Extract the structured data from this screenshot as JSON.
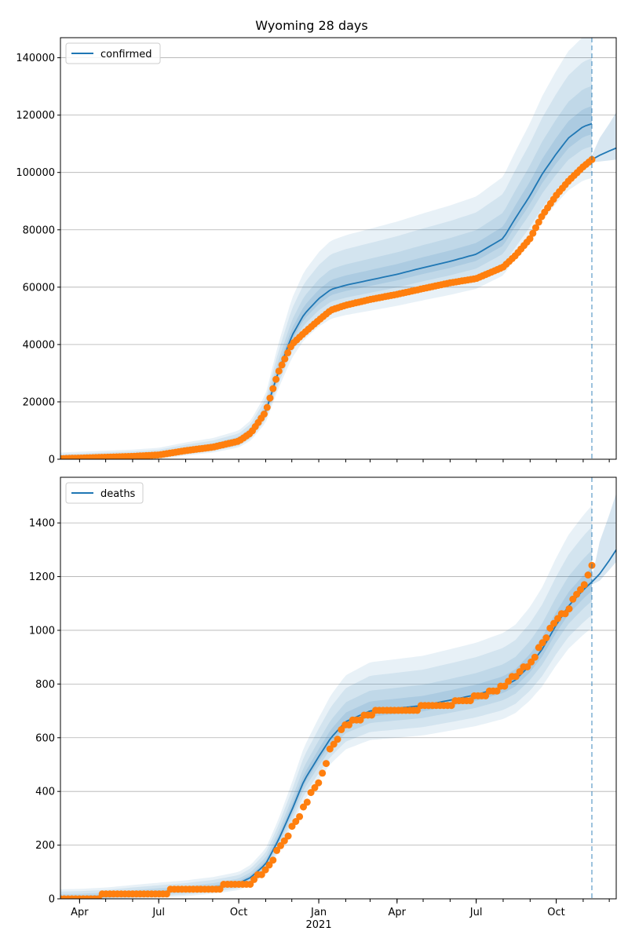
{
  "chart_data": [
    {
      "type": "line",
      "title": "Wyoming 28 days",
      "legend": "confirmed",
      "legend_position": "top-left",
      "grid": "y",
      "xlim": [
        "2020-03-10",
        "2021-12-09"
      ],
      "ylim": [
        0,
        147000
      ],
      "yticks": [
        0,
        20000,
        40000,
        60000,
        80000,
        100000,
        120000,
        140000
      ],
      "forecast_start": "2021-11-11",
      "series": [
        {
          "name": "confirmed",
          "role": "model",
          "color": "#1f77b4",
          "x": [
            "2020-03-10",
            "2020-04-01",
            "2020-05-01",
            "2020-06-01",
            "2020-07-01",
            "2020-08-01",
            "2020-09-01",
            "2020-10-01",
            "2020-10-15",
            "2020-11-01",
            "2020-11-15",
            "2020-12-01",
            "2020-12-15",
            "2021-01-01",
            "2021-01-15",
            "2021-02-01",
            "2021-03-01",
            "2021-04-01",
            "2021-05-01",
            "2021-06-01",
            "2021-07-01",
            "2021-08-01",
            "2021-08-15",
            "2021-09-01",
            "2021-09-15",
            "2021-10-01",
            "2021-10-15",
            "2021-11-01",
            "2021-11-11"
          ],
          "y": [
            200,
            400,
            700,
            1000,
            1500,
            3000,
            4200,
            6300,
            9200,
            16500,
            30000,
            43000,
            50500,
            56000,
            59200,
            60700,
            62500,
            64500,
            66800,
            69000,
            71500,
            77000,
            84000,
            92000,
            99500,
            106500,
            112000,
            116000,
            117000
          ]
        },
        {
          "name": "confirmed",
          "role": "observed",
          "color": "#ff7f0e",
          "x": [
            "2020-03-10",
            "2020-04-01",
            "2020-05-01",
            "2020-06-01",
            "2020-07-01",
            "2020-08-01",
            "2020-09-01",
            "2020-10-01",
            "2020-10-15",
            "2020-11-01",
            "2020-11-15",
            "2020-12-01",
            "2020-12-15",
            "2021-01-01",
            "2021-01-15",
            "2021-02-01",
            "2021-03-01",
            "2021-04-01",
            "2021-05-01",
            "2021-06-01",
            "2021-07-01",
            "2021-08-01",
            "2021-08-15",
            "2021-09-01",
            "2021-09-15",
            "2021-10-01",
            "2021-10-15",
            "2021-11-01",
            "2021-11-11"
          ],
          "y": [
            200,
            400,
            700,
            1000,
            1500,
            3000,
            4200,
            6300,
            9200,
            16500,
            30000,
            40000,
            44000,
            48500,
            52000,
            53700,
            55700,
            57500,
            59500,
            61500,
            63000,
            67000,
            71000,
            77000,
            85000,
            92000,
            97000,
            102000,
            104500
          ]
        }
      ],
      "forecast": {
        "x": [
          "2021-11-11",
          "2021-11-20",
          "2021-12-01",
          "2021-12-09"
        ],
        "y": [
          104500,
          106000,
          107500,
          108500
        ],
        "lower": [
          103500,
          103800,
          104200,
          104500
        ],
        "upper": [
          106000,
          112000,
          117000,
          121000
        ]
      }
    },
    {
      "type": "line",
      "legend": "deaths",
      "legend_position": "top-left",
      "grid": "y",
      "xlim": [
        "2020-03-10",
        "2021-12-09"
      ],
      "ylim": [
        0,
        1570
      ],
      "yticks": [
        0,
        200,
        400,
        600,
        800,
        1000,
        1200,
        1400
      ],
      "xtick_labels": [
        "Apr",
        "Jul",
        "Oct",
        "Jan",
        "Apr",
        "Jul",
        "Oct"
      ],
      "xtick_dates": [
        "2020-04-01",
        "2020-07-01",
        "2020-10-01",
        "2021-01-01",
        "2021-04-01",
        "2021-07-01",
        "2021-10-01"
      ],
      "year_label": "2021",
      "forecast_start": "2021-11-11",
      "series": [
        {
          "name": "deaths",
          "role": "model",
          "color": "#1f77b4",
          "x": [
            "2020-03-10",
            "2020-04-01",
            "2020-05-01",
            "2020-06-01",
            "2020-07-01",
            "2020-08-01",
            "2020-09-01",
            "2020-10-01",
            "2020-10-15",
            "2020-11-01",
            "2020-11-15",
            "2020-12-01",
            "2020-12-15",
            "2021-01-01",
            "2021-01-15",
            "2021-02-01",
            "2021-03-01",
            "2021-04-01",
            "2021-05-01",
            "2021-06-01",
            "2021-07-01",
            "2021-08-01",
            "2021-08-15",
            "2021-09-01",
            "2021-09-15",
            "2021-10-01",
            "2021-10-15",
            "2021-11-01",
            "2021-11-11"
          ],
          "y": [
            5,
            6,
            10,
            18,
            25,
            32,
            42,
            58,
            80,
            130,
            215,
            330,
            440,
            530,
            600,
            660,
            700,
            710,
            720,
            740,
            760,
            790,
            815,
            870,
            930,
            1020,
            1090,
            1150,
            1180
          ]
        },
        {
          "name": "deaths",
          "role": "observed",
          "color": "#ff7f0e",
          "x": [
            "2020-03-10",
            "2020-04-01",
            "2020-05-01",
            "2020-06-01",
            "2020-07-01",
            "2020-08-01",
            "2020-09-01",
            "2020-10-01",
            "2020-10-15",
            "2020-11-01",
            "2020-11-15",
            "2020-12-01",
            "2020-12-15",
            "2021-01-01",
            "2021-01-15",
            "2021-02-01",
            "2021-03-01",
            "2021-04-01",
            "2021-05-01",
            "2021-06-01",
            "2021-07-01",
            "2021-08-01",
            "2021-08-15",
            "2021-09-01",
            "2021-09-15",
            "2021-10-01",
            "2021-10-15",
            "2021-11-01",
            "2021-11-11"
          ],
          "y": [
            5,
            6,
            10,
            18,
            25,
            30,
            42,
            52,
            62,
            105,
            180,
            260,
            340,
            440,
            560,
            650,
            690,
            705,
            712,
            725,
            750,
            790,
            830,
            880,
            950,
            1040,
            1080,
            1170,
            1240
          ]
        }
      ],
      "forecast": {
        "x": [
          "2021-11-11",
          "2021-11-20",
          "2021-12-01",
          "2021-12-09"
        ],
        "y": [
          1180,
          1210,
          1260,
          1300
        ],
        "lower": [
          1170,
          1185,
          1225,
          1255
        ],
        "upper": [
          1195,
          1330,
          1430,
          1510
        ]
      }
    }
  ]
}
